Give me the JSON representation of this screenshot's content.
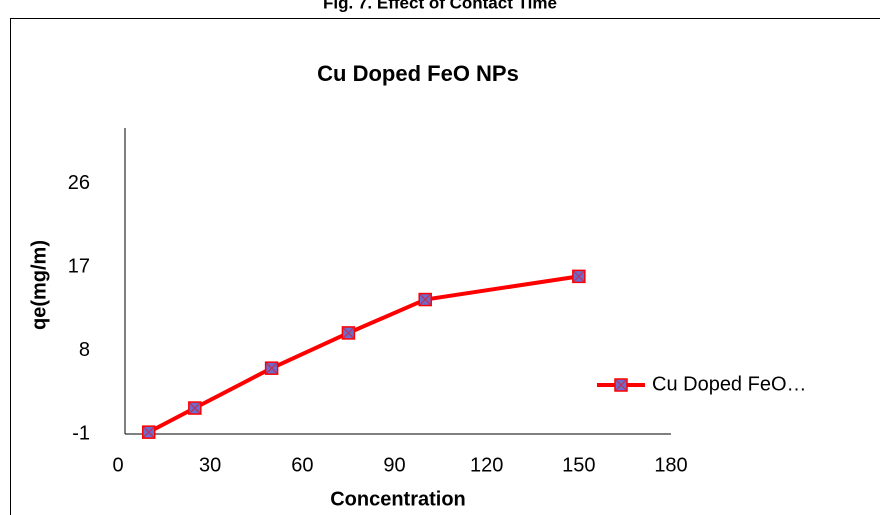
{
  "caption": "Fig. 7. Effect of Contact Time",
  "chart_data": {
    "type": "line",
    "title": "Cu Doped FeO NPs",
    "x_label": "Concentration",
    "y_label": "qe(mg/m)",
    "x": [
      10,
      25,
      50,
      75,
      100,
      150
    ],
    "series": [
      {
        "name": "Cu Doped FeO…",
        "color": "#ff0000",
        "values": [
          -0.8,
          1.8,
          6.1,
          9.9,
          13.5,
          16.0
        ]
      }
    ],
    "xlim": [
      0,
      180
    ],
    "xticks": [
      0,
      30,
      60,
      90,
      120,
      150,
      180
    ],
    "ylim": [
      -1,
      32
    ],
    "yticks": [
      -1,
      8,
      17,
      26
    ],
    "legend": "right"
  }
}
